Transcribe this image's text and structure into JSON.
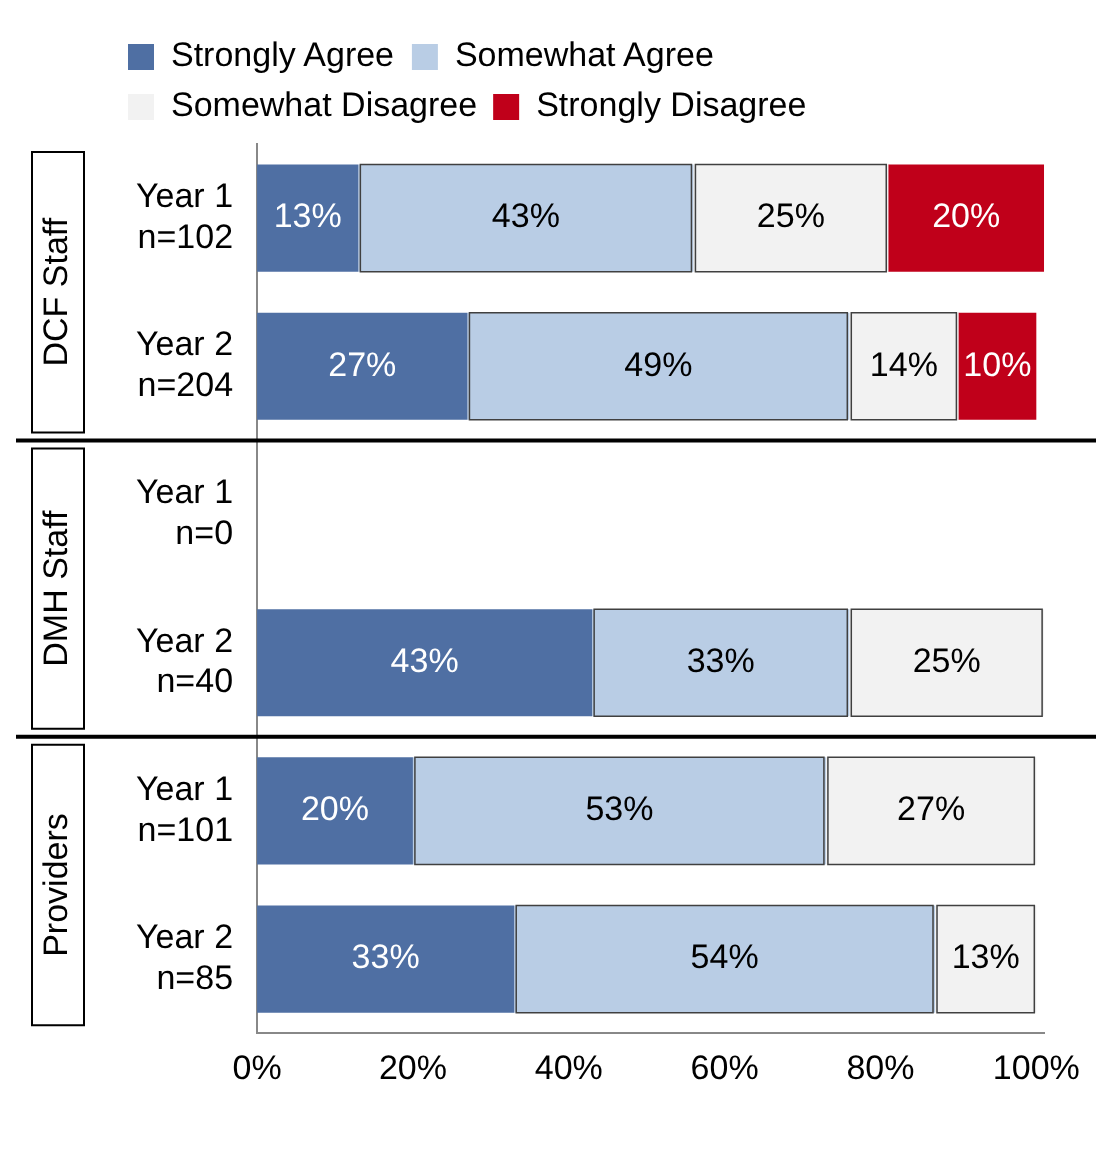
{
  "chart_data": {
    "type": "bar",
    "orientation": "horizontal",
    "stacked": true,
    "categories": [
      "Year 1\nn=102",
      "Year 2\nn=204",
      "Year 1\nn=0",
      "Year 2\nn=40",
      "Year 1\nn=101",
      "Year 2\nn=85"
    ],
    "series": [
      {
        "name": "Strongly Agree",
        "color": "#4f6fa3",
        "values": [
          13,
          27,
          null,
          43,
          20,
          33
        ],
        "value_labels": [
          "13%",
          "27%",
          null,
          "43%",
          "20%",
          "33%"
        ]
      },
      {
        "name": "Somewhat Agree",
        "color": "#b9cde5",
        "values": [
          43,
          49,
          null,
          33,
          53,
          54
        ],
        "value_labels": [
          "43%",
          "49%",
          null,
          "33%",
          "53%",
          "54%"
        ]
      },
      {
        "name": "Somewhat Disagree",
        "color": "#f2f2f2",
        "values": [
          25,
          14,
          null,
          25,
          27,
          13
        ],
        "value_labels": [
          "25%",
          "14%",
          null,
          "25%",
          "27%",
          "13%"
        ]
      },
      {
        "name": "Strongly Disagree",
        "color": "#c0001a",
        "values": [
          20,
          10,
          null,
          null,
          null,
          null
        ],
        "value_labels": [
          "20%",
          "10%",
          null,
          null,
          null,
          null
        ]
      }
    ],
    "xlim": [
      0,
      101
    ],
    "xticks": [
      {
        "value": 0,
        "label": "0%"
      },
      {
        "value": 20,
        "label": "20%"
      },
      {
        "value": 40,
        "label": "40%"
      },
      {
        "value": 60,
        "label": "60%"
      },
      {
        "value": 80,
        "label": "80%"
      },
      {
        "value": 100,
        "label": "100%"
      }
    ],
    "annotations": [
      "DCF Staff",
      "DMH Staff",
      "Providers"
    ],
    "legend": "top",
    "grid": false
  }
}
